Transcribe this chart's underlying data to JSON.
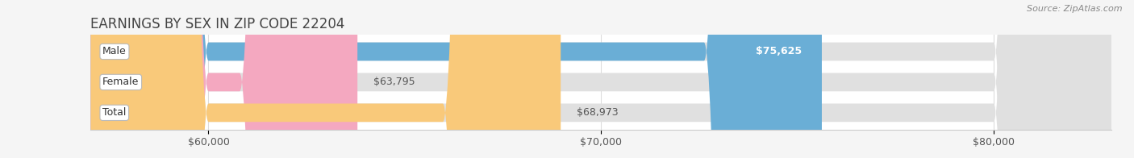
{
  "title": "EARNINGS BY SEX IN ZIP CODE 22204",
  "source": "Source: ZipAtlas.com",
  "categories": [
    "Male",
    "Female",
    "Total"
  ],
  "values": [
    75625,
    63795,
    68973
  ],
  "bar_colors": [
    "#6aaed6",
    "#f4a8c0",
    "#f9c97a"
  ],
  "bar_bg_color": "#e0e0e0",
  "label_inside": [
    true,
    false,
    false
  ],
  "xmin": 57000,
  "xmax": 83000,
  "xticks": [
    60000,
    70000,
    80000
  ],
  "xtick_labels": [
    "$60,000",
    "$70,000",
    "$80,000"
  ],
  "title_fontsize": 12,
  "tick_fontsize": 9,
  "bar_label_fontsize": 9,
  "category_fontsize": 9,
  "background_color": "#f5f5f5",
  "plot_bg_color": "#ffffff"
}
